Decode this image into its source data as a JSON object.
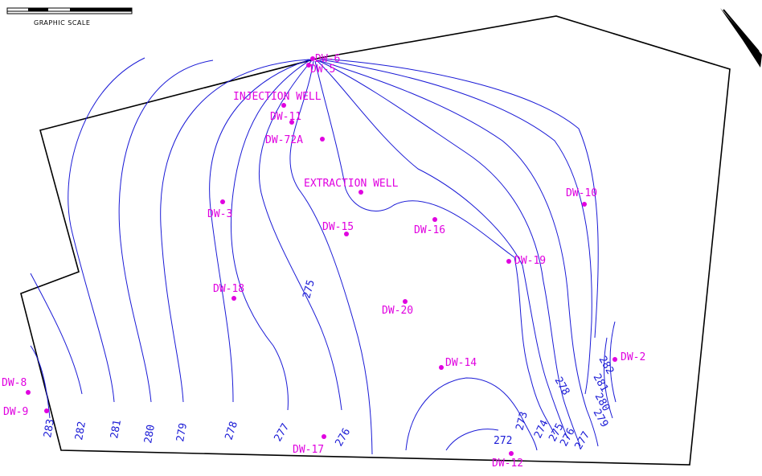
{
  "scale_label": "GRAPHIC SCALE",
  "colors": {
    "contour": "#1a1ad6",
    "well": "#e000e0",
    "boundary": "#000000"
  },
  "icons": {
    "north_arrow": "north-arrow-icon"
  },
  "wells": [
    {
      "id": "dw6",
      "label": "DW-6"
    },
    {
      "id": "dw5",
      "label": "DW-5"
    },
    {
      "id": "injection",
      "label": "INJECTION WELL"
    },
    {
      "id": "dw11",
      "label": "DW-11"
    },
    {
      "id": "dw72a",
      "label": "DW-72A"
    },
    {
      "id": "extraction",
      "label": "EXTRACTION WELL"
    },
    {
      "id": "dw10",
      "label": "DW-10"
    },
    {
      "id": "dw3",
      "label": "DW-3"
    },
    {
      "id": "dw15",
      "label": "DW-15"
    },
    {
      "id": "dw16",
      "label": "DW-16"
    },
    {
      "id": "dw19",
      "label": "DW-19"
    },
    {
      "id": "dw18",
      "label": "DW-18"
    },
    {
      "id": "dw20",
      "label": "DW-20"
    },
    {
      "id": "dw2",
      "label": "DW-2"
    },
    {
      "id": "dw14",
      "label": "DW-14"
    },
    {
      "id": "dw8",
      "label": "DW-8"
    },
    {
      "id": "dw9",
      "label": "DW-9"
    },
    {
      "id": "dw17",
      "label": "DW-17"
    },
    {
      "id": "dw12",
      "label": "DW-12"
    }
  ],
  "contour_labels": [
    {
      "id": "c283",
      "text": "283"
    },
    {
      "id": "c282",
      "text": "282"
    },
    {
      "id": "c281",
      "text": "281"
    },
    {
      "id": "c280",
      "text": "280"
    },
    {
      "id": "c279",
      "text": "279"
    },
    {
      "id": "c278",
      "text": "278"
    },
    {
      "id": "c277",
      "text": "277"
    },
    {
      "id": "c276",
      "text": "276"
    },
    {
      "id": "c275",
      "text": "275"
    },
    {
      "id": "c272",
      "text": "272"
    },
    {
      "id": "c273",
      "text": "273"
    },
    {
      "id": "c274",
      "text": "274"
    },
    {
      "id": "c275b",
      "text": "275"
    },
    {
      "id": "c276b",
      "text": "276"
    },
    {
      "id": "c277b",
      "text": "277"
    },
    {
      "id": "c278b",
      "text": "278"
    },
    {
      "id": "c279b",
      "text": "279"
    },
    {
      "id": "c280b",
      "text": "280"
    },
    {
      "id": "c281b",
      "text": "281"
    },
    {
      "id": "c282b",
      "text": "282"
    }
  ]
}
